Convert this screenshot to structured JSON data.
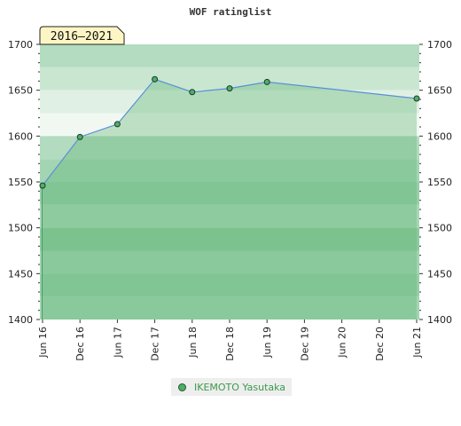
{
  "chart_data": {
    "type": "area",
    "title": "WOF ratinglist",
    "period_badge": "2016–2021",
    "x_ticks": [
      "Jun 16",
      "Dec 16",
      "Jun 17",
      "Dec 17",
      "Jun 18",
      "Dec 18",
      "Jun 19",
      "Dec 19",
      "Jun 20",
      "Dec 20",
      "Jun 21"
    ],
    "y_ticks": [
      "1700",
      "1650",
      "1600",
      "1550",
      "1500",
      "1450",
      "1400"
    ],
    "ylim": [
      1400,
      1700
    ],
    "grid": true,
    "legend_position": "bottom",
    "series": [
      {
        "name": "IKEMOTO Yasutaka",
        "color": "#4caf6a",
        "points": [
          {
            "x": "Jun 16",
            "y": 1546
          },
          {
            "x": "Dec 16",
            "y": 1599
          },
          {
            "x": "Jun 17",
            "y": 1613
          },
          {
            "x": "Dec 17",
            "y": 1662
          },
          {
            "x": "Jun 18",
            "y": 1648
          },
          {
            "x": "Dec 18",
            "y": 1652
          },
          {
            "x": "Jun 19",
            "y": 1659
          },
          {
            "x": "Jun 21",
            "y": 1641
          }
        ]
      }
    ]
  }
}
